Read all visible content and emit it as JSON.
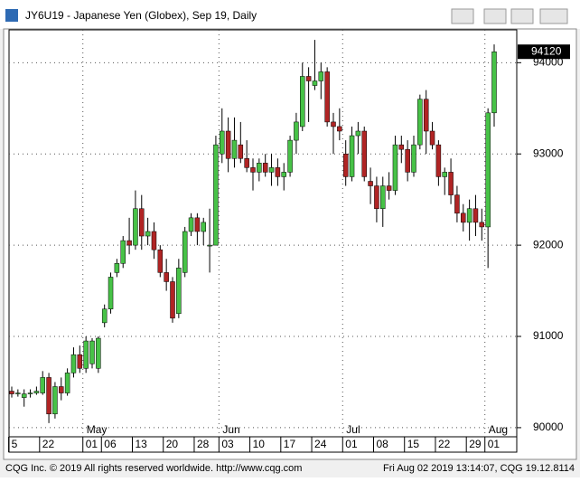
{
  "chart_data": {
    "type": "candlestick",
    "title": "JY6U19 - Japanese Yen (Globex), Sep 19, Daily",
    "copyright": "CQG Inc. © 2019 All rights reserved worldwide. http://www.cqg.com",
    "timestamp": "Fri Aug 02 2019 13:14:07, CQG 19.12.8114",
    "categories": [
      "5",
      null,
      null,
      null,
      null,
      "22",
      null,
      null,
      null,
      null,
      null,
      null,
      "01",
      null,
      null,
      "06",
      null,
      null,
      null,
      null,
      "13",
      null,
      null,
      null,
      null,
      "20",
      null,
      null,
      null,
      null,
      "28",
      null,
      null,
      null,
      "03",
      null,
      null,
      null,
      null,
      "10",
      null,
      null,
      null,
      null,
      "17",
      null,
      null,
      null,
      null,
      "24",
      null,
      null,
      null,
      null,
      "01",
      null,
      null,
      null,
      null,
      "08",
      null,
      null,
      null,
      null,
      "15",
      null,
      null,
      null,
      null,
      "22",
      null,
      null,
      null,
      null,
      "29",
      null,
      null,
      "01",
      null
    ],
    "months": [
      null,
      null,
      null,
      null,
      null,
      null,
      null,
      null,
      null,
      null,
      null,
      null,
      "May",
      null,
      null,
      null,
      null,
      null,
      null,
      null,
      null,
      null,
      null,
      null,
      null,
      null,
      null,
      null,
      null,
      null,
      null,
      null,
      null,
      null,
      "Jun",
      null,
      null,
      null,
      null,
      null,
      null,
      null,
      null,
      null,
      null,
      null,
      null,
      null,
      null,
      null,
      null,
      null,
      null,
      null,
      "Jul",
      null,
      null,
      null,
      null,
      null,
      null,
      null,
      null,
      null,
      null,
      null,
      null,
      null,
      null,
      null,
      null,
      null,
      null,
      null,
      null,
      null,
      null,
      "Aug",
      null
    ],
    "open": [
      90400,
      90370,
      90330,
      90370,
      90380,
      90380,
      90550,
      90150,
      90450,
      90380,
      90600,
      90800,
      90650,
      90700,
      90650,
      91150,
      91300,
      91700,
      91800,
      92050,
      92000,
      92400,
      92100,
      92150,
      91950,
      91700,
      91600,
      91250,
      91700,
      92150,
      92300,
      92150,
      92000,
      92000,
      93000,
      93250,
      92950,
      93100,
      92950,
      92850,
      92800,
      92900,
      92800,
      92850,
      92750,
      92800,
      93150,
      93300,
      93850,
      93750,
      93800,
      93900,
      93350,
      93300,
      93000,
      92750,
      93200,
      93250,
      92700,
      92650,
      92400,
      92650,
      92600,
      93100,
      93050,
      92800,
      93100,
      93600,
      93250,
      93100,
      92750,
      92800,
      92550,
      92350,
      92250,
      92400,
      92250,
      92200,
      93450
    ],
    "high": [
      90450,
      90420,
      90420,
      90420,
      90450,
      90620,
      90600,
      90500,
      90550,
      90650,
      90880,
      90900,
      91000,
      90980,
      91000,
      91350,
      91700,
      91850,
      92100,
      92300,
      92600,
      92550,
      92300,
      92250,
      92000,
      91850,
      91650,
      91850,
      92200,
      92350,
      92350,
      92300,
      92400,
      93200,
      93500,
      93400,
      93400,
      93350,
      93150,
      92950,
      92950,
      93000,
      93000,
      92950,
      92900,
      93200,
      93450,
      94000,
      93950,
      94250,
      94000,
      93950,
      93450,
      93500,
      93150,
      93300,
      93350,
      93300,
      92850,
      92750,
      92750,
      92800,
      93200,
      93200,
      93150,
      93200,
      93650,
      93700,
      93350,
      93150,
      92850,
      92950,
      92650,
      92450,
      92500,
      92550,
      92400,
      93500,
      94200
    ],
    "low": [
      90330,
      90340,
      90230,
      90330,
      90360,
      90360,
      90050,
      90100,
      90300,
      90350,
      90550,
      90600,
      90600,
      90650,
      90600,
      91100,
      91250,
      91650,
      91750,
      91900,
      91950,
      91950,
      92000,
      91850,
      91650,
      91500,
      91150,
      91200,
      91650,
      92100,
      92000,
      92000,
      91700,
      92000,
      92900,
      92800,
      92850,
      92900,
      92800,
      92600,
      92700,
      92750,
      92650,
      92650,
      92600,
      92750,
      93000,
      93250,
      93350,
      93700,
      93600,
      93300,
      93000,
      93150,
      92650,
      92700,
      93000,
      92700,
      92450,
      92250,
      92200,
      92500,
      92550,
      92900,
      92700,
      92750,
      93050,
      93000,
      93050,
      92650,
      92550,
      92450,
      92250,
      92150,
      92050,
      92100,
      92050,
      91750,
      93300
    ],
    "close": [
      90370,
      90380,
      90370,
      90380,
      90400,
      90550,
      90150,
      90450,
      90380,
      90600,
      90800,
      90650,
      90950,
      90950,
      90980,
      91300,
      91650,
      91800,
      92050,
      92000,
      92400,
      92100,
      92150,
      91950,
      91700,
      91600,
      91200,
      91750,
      92150,
      92300,
      92150,
      92250,
      92000,
      93100,
      93250,
      92950,
      93150,
      92950,
      92850,
      92800,
      92900,
      92800,
      92850,
      92750,
      92800,
      93150,
      93350,
      93850,
      93800,
      93800,
      93900,
      93350,
      93300,
      93250,
      92750,
      93200,
      93250,
      92750,
      92650,
      92400,
      92650,
      92600,
      93100,
      93050,
      92800,
      93100,
      93600,
      93250,
      93100,
      92750,
      92800,
      92550,
      92350,
      92250,
      92400,
      92250,
      92200,
      93450,
      94120
    ],
    "up_color": "#47c247",
    "down_color": "#b02424",
    "ylim": [
      89900,
      94360
    ],
    "yticks": [
      90000,
      91000,
      92000,
      93000,
      94000
    ],
    "grid": true
  }
}
